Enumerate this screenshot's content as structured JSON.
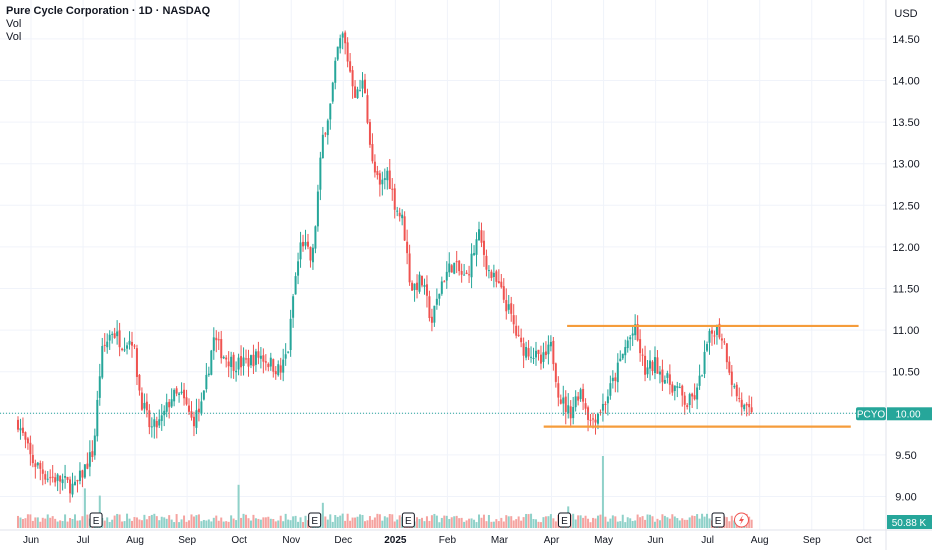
{
  "header": {
    "title": "Pure Cycle Corporation · 1D · NASDAQ",
    "vol_labels": [
      "Vol",
      "Vol"
    ]
  },
  "chart_data": {
    "type": "candlestick",
    "currency": "USD",
    "ticker": "PCYO",
    "last_price": "10.00",
    "volume_label": "50.88 K",
    "ylim": [
      8.75,
      14.75
    ],
    "y_ticks": [
      "9.00",
      "9.50",
      "10.00",
      "10.50",
      "11.00",
      "11.50",
      "12.00",
      "12.50",
      "13.00",
      "13.50",
      "14.00",
      "14.50"
    ],
    "x_ticks": [
      {
        "label": "Jun",
        "month": 0,
        "bold": false
      },
      {
        "label": "Jul",
        "month": 1,
        "bold": false
      },
      {
        "label": "Aug",
        "month": 2,
        "bold": false
      },
      {
        "label": "Sep",
        "month": 3,
        "bold": false
      },
      {
        "label": "Oct",
        "month": 4,
        "bold": false
      },
      {
        "label": "Nov",
        "month": 5,
        "bold": false
      },
      {
        "label": "Dec",
        "month": 6,
        "bold": false
      },
      {
        "label": "2025",
        "month": 7,
        "bold": true
      },
      {
        "label": "Feb",
        "month": 8,
        "bold": false
      },
      {
        "label": "Mar",
        "month": 9,
        "bold": false
      },
      {
        "label": "Apr",
        "month": 10,
        "bold": false
      },
      {
        "label": "May",
        "month": 11,
        "bold": false
      },
      {
        "label": "Jun",
        "month": 12,
        "bold": false
      },
      {
        "label": "Jul",
        "month": 13,
        "bold": false
      },
      {
        "label": "Aug",
        "month": 14,
        "bold": false
      },
      {
        "label": "Sep",
        "month": 15,
        "bold": false
      },
      {
        "label": "Oct",
        "month": 16,
        "bold": false
      }
    ],
    "price_path": [
      [
        -0.25,
        9.9
      ],
      [
        0.0,
        9.45
      ],
      [
        0.3,
        9.25
      ],
      [
        0.55,
        9.2
      ],
      [
        0.85,
        9.1
      ],
      [
        1.0,
        9.3
      ],
      [
        1.2,
        9.55
      ],
      [
        1.35,
        10.7
      ],
      [
        1.55,
        11.0
      ],
      [
        1.75,
        10.85
      ],
      [
        1.95,
        10.9
      ],
      [
        2.1,
        10.2
      ],
      [
        2.3,
        9.8
      ],
      [
        2.5,
        9.9
      ],
      [
        2.7,
        10.2
      ],
      [
        2.9,
        10.2
      ],
      [
        3.1,
        9.9
      ],
      [
        3.3,
        10.1
      ],
      [
        3.5,
        10.9
      ],
      [
        3.7,
        10.7
      ],
      [
        3.9,
        10.6
      ],
      [
        4.1,
        10.6
      ],
      [
        4.4,
        10.7
      ],
      [
        4.8,
        10.5
      ],
      [
        4.95,
        10.8
      ],
      [
        5.05,
        11.5
      ],
      [
        5.2,
        12.1
      ],
      [
        5.4,
        11.8
      ],
      [
        5.6,
        13.3
      ],
      [
        5.75,
        13.7
      ],
      [
        5.9,
        14.4
      ],
      [
        6.0,
        14.55
      ],
      [
        6.1,
        14.2
      ],
      [
        6.25,
        13.8
      ],
      [
        6.4,
        14.0
      ],
      [
        6.55,
        13.0
      ],
      [
        6.7,
        12.7
      ],
      [
        6.85,
        12.9
      ],
      [
        7.0,
        12.5
      ],
      [
        7.15,
        12.3
      ],
      [
        7.3,
        11.5
      ],
      [
        7.5,
        11.6
      ],
      [
        7.7,
        11.1
      ],
      [
        7.9,
        11.6
      ],
      [
        8.1,
        11.8
      ],
      [
        8.35,
        11.6
      ],
      [
        8.6,
        12.15
      ],
      [
        8.8,
        11.7
      ],
      [
        9.0,
        11.5
      ],
      [
        9.2,
        11.2
      ],
      [
        9.4,
        10.8
      ],
      [
        9.6,
        10.75
      ],
      [
        9.8,
        10.6
      ],
      [
        10.0,
        10.8
      ],
      [
        10.15,
        10.2
      ],
      [
        10.35,
        10.0
      ],
      [
        10.55,
        10.3
      ],
      [
        10.75,
        9.9
      ],
      [
        11.0,
        10.1
      ],
      [
        11.2,
        10.4
      ],
      [
        11.45,
        10.85
      ],
      [
        11.6,
        11.0
      ],
      [
        11.8,
        10.5
      ],
      [
        12.0,
        10.6
      ],
      [
        12.2,
        10.4
      ],
      [
        12.4,
        10.3
      ],
      [
        12.6,
        10.1
      ],
      [
        12.8,
        10.25
      ],
      [
        13.0,
        10.85
      ],
      [
        13.15,
        11.05
      ],
      [
        13.3,
        10.9
      ],
      [
        13.5,
        10.3
      ],
      [
        13.7,
        10.05
      ],
      [
        13.85,
        9.95
      ]
    ],
    "volume_spikes": [
      {
        "month": 1.05,
        "rel": 0.55
      },
      {
        "month": 1.3,
        "rel": 0.45
      },
      {
        "month": 4.0,
        "rel": 0.6
      },
      {
        "month": 5.6,
        "rel": 0.35
      },
      {
        "month": 10.3,
        "rel": 0.3
      },
      {
        "month": 11.0,
        "rel": 1.0
      }
    ],
    "earnings_markers": [
      1.25,
      5.45,
      7.25,
      10.25,
      13.2
    ],
    "annotations": [
      {
        "type": "horizontal-segment",
        "color": "#f59c3b",
        "price": 11.05,
        "from_month": 10.3,
        "to_month": 15.9
      },
      {
        "type": "horizontal-segment",
        "color": "#f59c3b",
        "price": 9.84,
        "from_month": 9.85,
        "to_month": 15.75
      }
    ],
    "colors": {
      "up": "#26a69a",
      "down": "#ef5350",
      "vol_up": "#8fd1c9",
      "vol_down": "#f5a3a0",
      "last_price": "#26a69a"
    }
  }
}
